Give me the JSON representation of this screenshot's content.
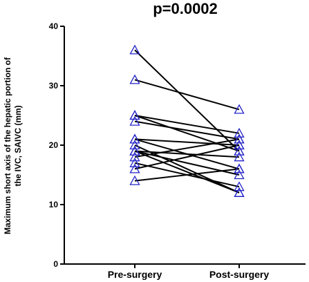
{
  "chart_data": {
    "type": "scatter",
    "title": "p=0.0002",
    "ylabel_lines": [
      "Maximum short axis of the hepatic portion of",
      "the IVC, SAIVC (mm)"
    ],
    "categories": [
      "Pre-surgery",
      "Post-surgery"
    ],
    "ylim": [
      0,
      40
    ],
    "yticks": [
      0,
      10,
      20,
      30,
      40
    ],
    "marker_color": "#2323c8",
    "line_color": "#000000",
    "pairs": [
      [
        36,
        19
      ],
      [
        31,
        26
      ],
      [
        25,
        22
      ],
      [
        25,
        19
      ],
      [
        24,
        21
      ],
      [
        21,
        20
      ],
      [
        21,
        16
      ],
      [
        20,
        12
      ],
      [
        19,
        18
      ],
      [
        19,
        15
      ],
      [
        19,
        12
      ],
      [
        18,
        21
      ],
      [
        17,
        13
      ],
      [
        16,
        20
      ],
      [
        14,
        16
      ]
    ]
  }
}
